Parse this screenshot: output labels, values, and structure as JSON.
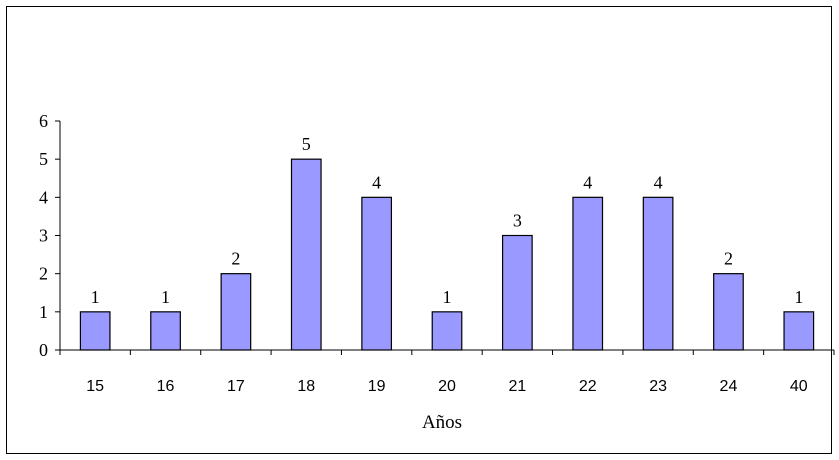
{
  "chart_data": {
    "type": "bar",
    "title": "",
    "xlabel": "Años",
    "ylabel": "",
    "categories": [
      "15",
      "16",
      "17",
      "18",
      "19",
      "20",
      "21",
      "22",
      "23",
      "24",
      "40"
    ],
    "values": [
      1,
      1,
      2,
      5,
      4,
      1,
      3,
      4,
      4,
      2,
      1
    ],
    "data_labels": [
      "1",
      "1",
      "2",
      "5",
      "4",
      "1",
      "3",
      "4",
      "4",
      "2",
      "1"
    ],
    "y_ticks": [
      "0",
      "1",
      "2",
      "3",
      "4",
      "5",
      "6"
    ],
    "ylim": [
      0,
      6
    ],
    "grid": false,
    "legend": "none",
    "bar_color": "#9999ff",
    "bar_border_color": "#000000"
  }
}
